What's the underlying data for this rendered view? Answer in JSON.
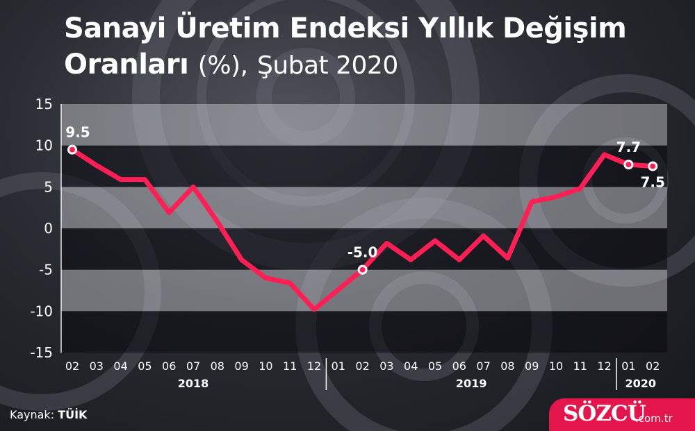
{
  "header": {
    "title_line1": "Sanayi Üretim Endeksi Yıllık Değişim",
    "title_line2_main": "Oranları",
    "title_line2_unit": "(%),",
    "title_line2_period": "Şubat 2020"
  },
  "footer": {
    "source_label": "Kaynak:",
    "source_value": "TÜİK",
    "brand_name": "SÖZCÜ",
    "brand_domain": ".com.tr"
  },
  "colors": {
    "line": "#ff1f55",
    "band_light": "rgba(220,220,225,0.42)",
    "band_dark": "rgba(10,10,14,0.55)",
    "brand": "#e3154b"
  },
  "chart_data": {
    "type": "line",
    "title": "Sanayi Üretim Endeksi Yıllık Değişim Oranları (%), Şubat 2020",
    "x": [
      "02",
      "03",
      "04",
      "05",
      "06",
      "07",
      "08",
      "09",
      "10",
      "11",
      "12",
      "01",
      "02",
      "03",
      "04",
      "05",
      "06",
      "07",
      "08",
      "09",
      "10",
      "11",
      "12",
      "01",
      "02"
    ],
    "year_groups": [
      {
        "label": "2018",
        "months": [
          "02",
          "03",
          "04",
          "05",
          "06",
          "07",
          "08",
          "09",
          "10",
          "11",
          "12"
        ]
      },
      {
        "label": "2019",
        "months": [
          "01",
          "02",
          "03",
          "04",
          "05",
          "06",
          "07",
          "08",
          "09",
          "10",
          "11",
          "12"
        ]
      },
      {
        "label": "2020",
        "months": [
          "01",
          "02"
        ]
      }
    ],
    "series": [
      {
        "name": "",
        "values": [
          9.5,
          7.6,
          5.9,
          5.9,
          1.9,
          5.0,
          0.8,
          -3.8,
          -6.0,
          -6.6,
          -9.8,
          -7.4,
          -5.0,
          -1.8,
          -3.8,
          -1.5,
          -3.8,
          -0.9,
          -3.6,
          3.2,
          3.8,
          4.8,
          8.9,
          7.7,
          7.5
        ]
      }
    ],
    "point_labels": [
      {
        "index": 0,
        "text": "9.5",
        "position": "above"
      },
      {
        "index": 12,
        "text": "-5.0",
        "position": "above"
      },
      {
        "index": 23,
        "text": "7.7",
        "position": "above"
      },
      {
        "index": 24,
        "text": "7.5",
        "position": "below"
      }
    ],
    "y_ticks": [
      "15",
      "10",
      "5",
      "0",
      "-5",
      "-10",
      "-15"
    ],
    "ylim": [
      -15,
      15
    ],
    "xlabel": "",
    "ylabel": "",
    "grid": "alternating horizontal bands",
    "legend": "none"
  }
}
